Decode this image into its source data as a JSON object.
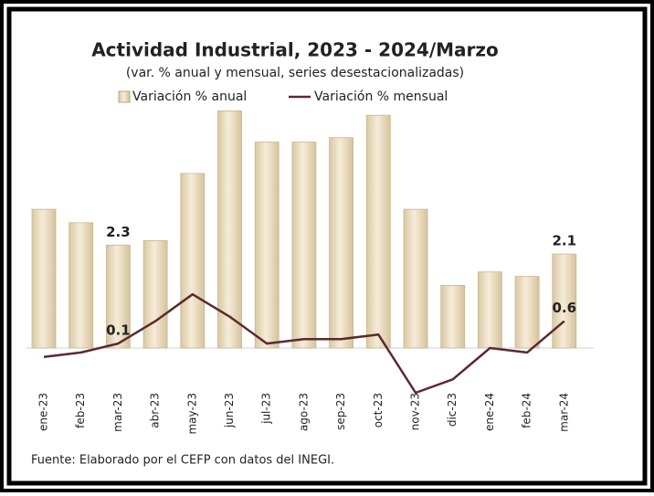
{
  "chart_data": {
    "type": "bar_line",
    "title": "Actividad Industrial, 2023 - 2024/Marzo",
    "subtitle": "(var. % anual y mensual, series desestacionalizadas)",
    "footnote": "Fuente: Elaborado por el CEFP con datos del INEGI.",
    "categories": [
      "ene-23",
      "feb-23",
      "mar-23",
      "abr-23",
      "may-23",
      "jun-23",
      "jul-23",
      "ago-23",
      "sep-23",
      "oct-23",
      "nov-23",
      "dic-23",
      "ene-24",
      "feb-24",
      "mar-24"
    ],
    "ylim": [
      -1.5,
      5.5
    ],
    "series": [
      {
        "name": "Variación % anual",
        "kind": "bar",
        "color": "#efe2c6",
        "values": [
          3.1,
          2.8,
          2.3,
          2.4,
          3.9,
          5.3,
          4.6,
          4.6,
          4.7,
          5.2,
          3.1,
          1.4,
          1.7,
          1.6,
          2.1
        ],
        "value_labels": [
          null,
          null,
          "2.3",
          null,
          null,
          null,
          null,
          null,
          null,
          null,
          null,
          null,
          null,
          null,
          "2.1"
        ]
      },
      {
        "name": "Variación % mensual",
        "kind": "line",
        "color": "#5a2a2e",
        "values": [
          -0.2,
          -0.1,
          0.1,
          0.6,
          1.2,
          0.7,
          0.1,
          0.2,
          0.2,
          0.3,
          -1.0,
          -0.7,
          0.0,
          -0.1,
          0.6
        ],
        "value_labels": [
          null,
          null,
          "0.1",
          null,
          null,
          null,
          null,
          null,
          null,
          null,
          null,
          null,
          null,
          null,
          "0.6"
        ]
      }
    ]
  }
}
